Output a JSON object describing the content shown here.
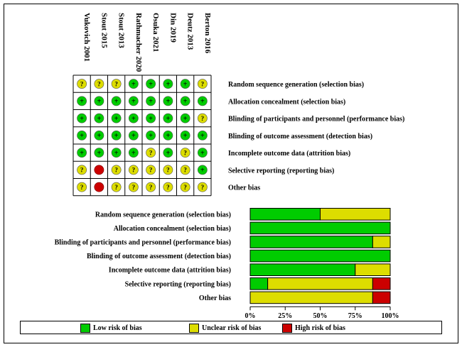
{
  "chart_data": [
    {
      "type": "table",
      "studies": [
        "Vukovich 2001",
        "Stout 2015",
        "Stout 2013",
        "Rathmacher 2020",
        "Osuka 2021",
        "Din 2019",
        "Deutz 2013",
        "Berton 2016"
      ],
      "domains": [
        "Random sequence generation (selection bias)",
        "Allocation concealment (selection bias)",
        "Blinding of participants and personnel (performance bias)",
        "Blinding of outcome assessment (detection bias)",
        "Incomplete outcome data (attrition bias)",
        "Selective reporting (reporting bias)",
        "Other bias"
      ],
      "judgements": [
        [
          "?",
          "?",
          "?",
          "+",
          "+",
          "+",
          "+",
          "?"
        ],
        [
          "+",
          "+",
          "+",
          "+",
          "+",
          "+",
          "+",
          "+"
        ],
        [
          "+",
          "+",
          "+",
          "+",
          "+",
          "+",
          "+",
          "?"
        ],
        [
          "+",
          "+",
          "+",
          "+",
          "+",
          "+",
          "+",
          "+"
        ],
        [
          "+",
          "+",
          "+",
          "+",
          "?",
          "+",
          "?",
          "+"
        ],
        [
          "?",
          "-",
          "?",
          "?",
          "?",
          "?",
          "?",
          "+"
        ],
        [
          "?",
          "-",
          "?",
          "?",
          "?",
          "?",
          "?",
          "?"
        ]
      ],
      "symbol_labels": {
        "+": "+",
        "?": "?",
        "-": ""
      }
    },
    {
      "type": "bar",
      "stacked": true,
      "orientation": "horizontal",
      "categories": [
        "Random sequence generation (selection bias)",
        "Allocation concealment (selection bias)",
        "Blinding of participants and personnel (performance bias)",
        "Blinding of outcome assessment (detection bias)",
        "Incomplete outcome data (attrition bias)",
        "Selective reporting (reporting bias)",
        "Other bias"
      ],
      "series": [
        {
          "name": "Low risk of bias",
          "values": [
            50,
            100,
            87.5,
            100,
            75,
            12.5,
            0
          ]
        },
        {
          "name": "Unclear risk of bias",
          "values": [
            50,
            0,
            12.5,
            0,
            25,
            75,
            87.5
          ]
        },
        {
          "name": "High risk of bias",
          "values": [
            0,
            0,
            0,
            0,
            0,
            12.5,
            12.5
          ]
        }
      ],
      "xlim": [
        0,
        100
      ],
      "xticks": [
        "0%",
        "25%",
        "50%",
        "75%",
        "100%"
      ],
      "legend_position": "bottom"
    }
  ],
  "colors": {
    "low": "#00cc00",
    "unclear": "#dddd00",
    "high": "#cc0000"
  },
  "legend": [
    {
      "key": "low",
      "label": "Low risk of bias"
    },
    {
      "key": "unclear",
      "label": "Unclear risk of bias"
    },
    {
      "key": "high",
      "label": "High risk of bias"
    }
  ]
}
